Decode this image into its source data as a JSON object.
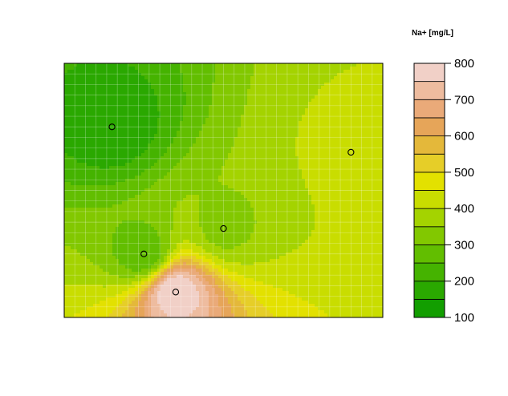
{
  "chart_data": {
    "type": "heatmap",
    "subtype": "filled-contour map",
    "title": "",
    "xlabel": "",
    "ylabel": "",
    "legend": {
      "title": "Na+ [mg/L]",
      "placement": "right",
      "range": [
        100,
        800
      ],
      "ticks": [
        100,
        200,
        300,
        400,
        500,
        600,
        700,
        800
      ],
      "levels": [
        100,
        150,
        200,
        250,
        300,
        350,
        400,
        450,
        500,
        550,
        600,
        650,
        700,
        750,
        800
      ],
      "colors": [
        "#129e00",
        "#2aa800",
        "#45b300",
        "#62be00",
        "#82c800",
        "#a4d300",
        "#c9dd00",
        "#e3e100",
        "#e6ce28",
        "#e4b83a",
        "#e6a559",
        "#eaaa79",
        "#eebc9f",
        "#f1d0c7",
        "#f2f2f2"
      ]
    },
    "grid": true,
    "points": [
      {
        "x": 0.15,
        "y": 0.75,
        "value": 165
      },
      {
        "x": 0.25,
        "y": 0.25,
        "value": 255
      },
      {
        "x": 0.5,
        "y": 0.35,
        "value": 335
      },
      {
        "x": 0.9,
        "y": 0.65,
        "value": 410
      },
      {
        "x": 0.35,
        "y": 0.1,
        "value": 800
      }
    ]
  }
}
